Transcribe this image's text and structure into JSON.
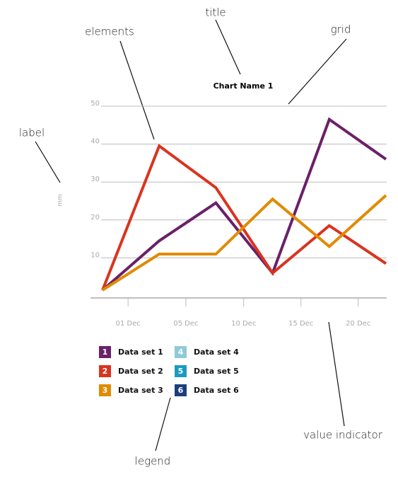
{
  "chart_data": {
    "type": "line",
    "title": "Chart Name 1",
    "y_label": "mm",
    "x": [
      0,
      1,
      2,
      3,
      4,
      5
    ],
    "xlim": [
      -0.2,
      5
    ],
    "xticks": [
      {
        "value": 0.45,
        "label": "01 Dec"
      },
      {
        "value": 1.47,
        "label": "05 Dec"
      },
      {
        "value": 2.49,
        "label": "10 Dec"
      },
      {
        "value": 3.5,
        "label": "15 Dec"
      },
      {
        "value": 4.51,
        "label": "20 Dec"
      }
    ],
    "ylim": [
      0,
      50
    ],
    "yticks": [
      10,
      20,
      30,
      40,
      50
    ],
    "grid": true,
    "series": [
      {
        "name": "Data set 1",
        "badge": "1",
        "color": "#6b2069",
        "values": [
          1.5,
          14.5,
          24.5,
          6,
          46.5,
          36
        ]
      },
      {
        "name": "Data set 2",
        "badge": "2",
        "color": "#d9341f",
        "values": [
          1.5,
          39.5,
          28.5,
          6,
          18.5,
          8.5
        ]
      },
      {
        "name": "Data set 3",
        "badge": "3",
        "color": "#e08b00",
        "values": [
          1.5,
          11,
          11,
          25.5,
          13,
          26.5
        ]
      },
      {
        "name": "Data set 4",
        "badge": "4",
        "color": "#8ecbd8",
        "values": [
          null,
          null,
          null,
          null,
          null,
          null
        ]
      },
      {
        "name": "Data set 5",
        "badge": "5",
        "color": "#1a9bbf",
        "values": [
          null,
          null,
          null,
          null,
          null,
          null
        ]
      },
      {
        "name": "Data set 6",
        "badge": "6",
        "color": "#1c3f7c",
        "values": [
          null,
          null,
          null,
          null,
          null,
          null
        ]
      }
    ],
    "annotations": [
      "title",
      "elements",
      "grid",
      "label",
      "legend",
      "value indicator"
    ]
  }
}
